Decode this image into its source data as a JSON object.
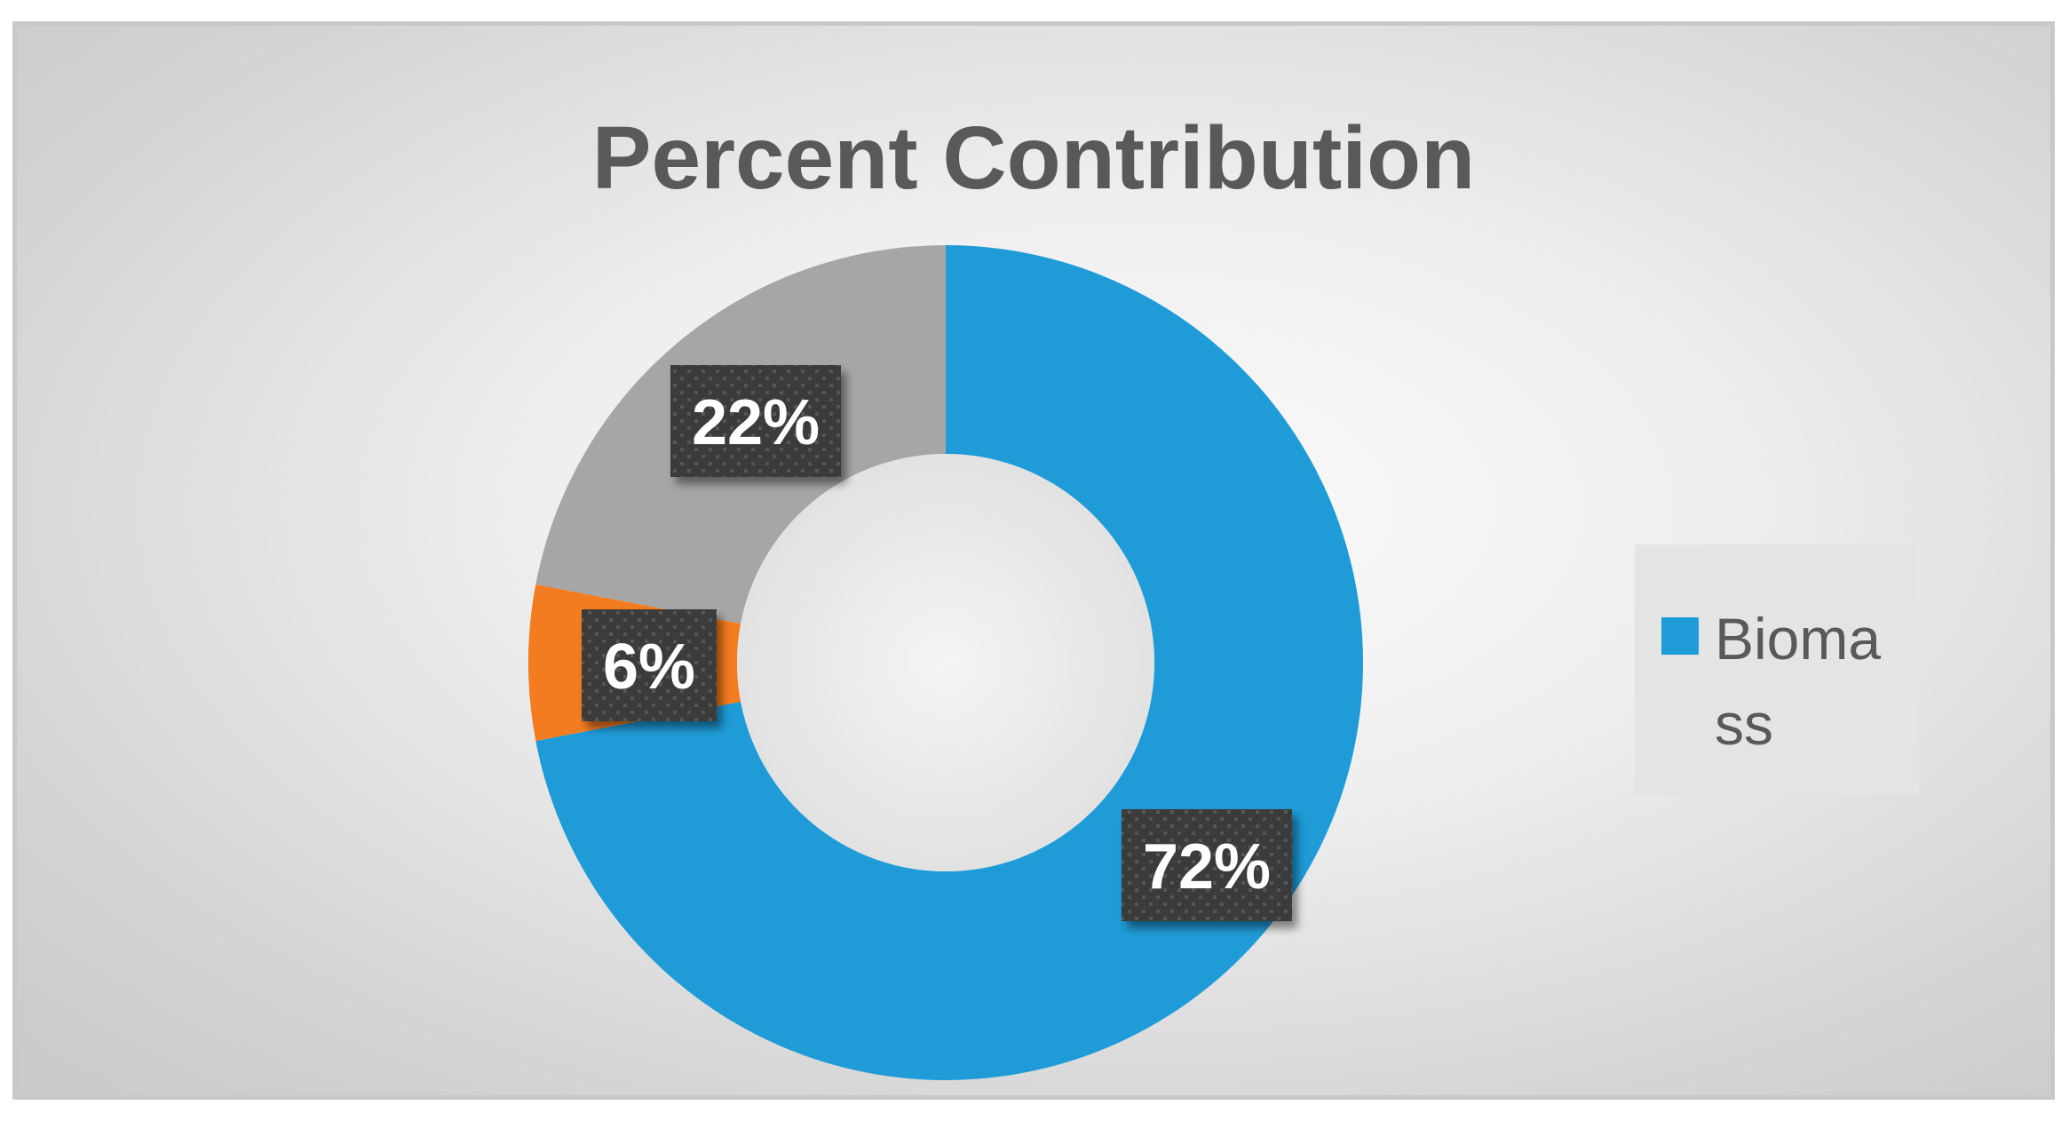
{
  "chart_data": {
    "type": "pie",
    "title": "Percent Contribution",
    "subtype": "donut",
    "slices": [
      {
        "label": "Biomass",
        "value": 72,
        "display": "72%",
        "color": "#1f9cd8"
      },
      {
        "label": "",
        "value": 6,
        "display": "6%",
        "color": "#f47c20"
      },
      {
        "label": "",
        "value": 22,
        "display": "22%",
        "color": "#a6a6a6"
      }
    ],
    "legend": {
      "position": "right",
      "entries": [
        {
          "label": "Biomass",
          "color": "#1f9cd8"
        }
      ]
    }
  }
}
